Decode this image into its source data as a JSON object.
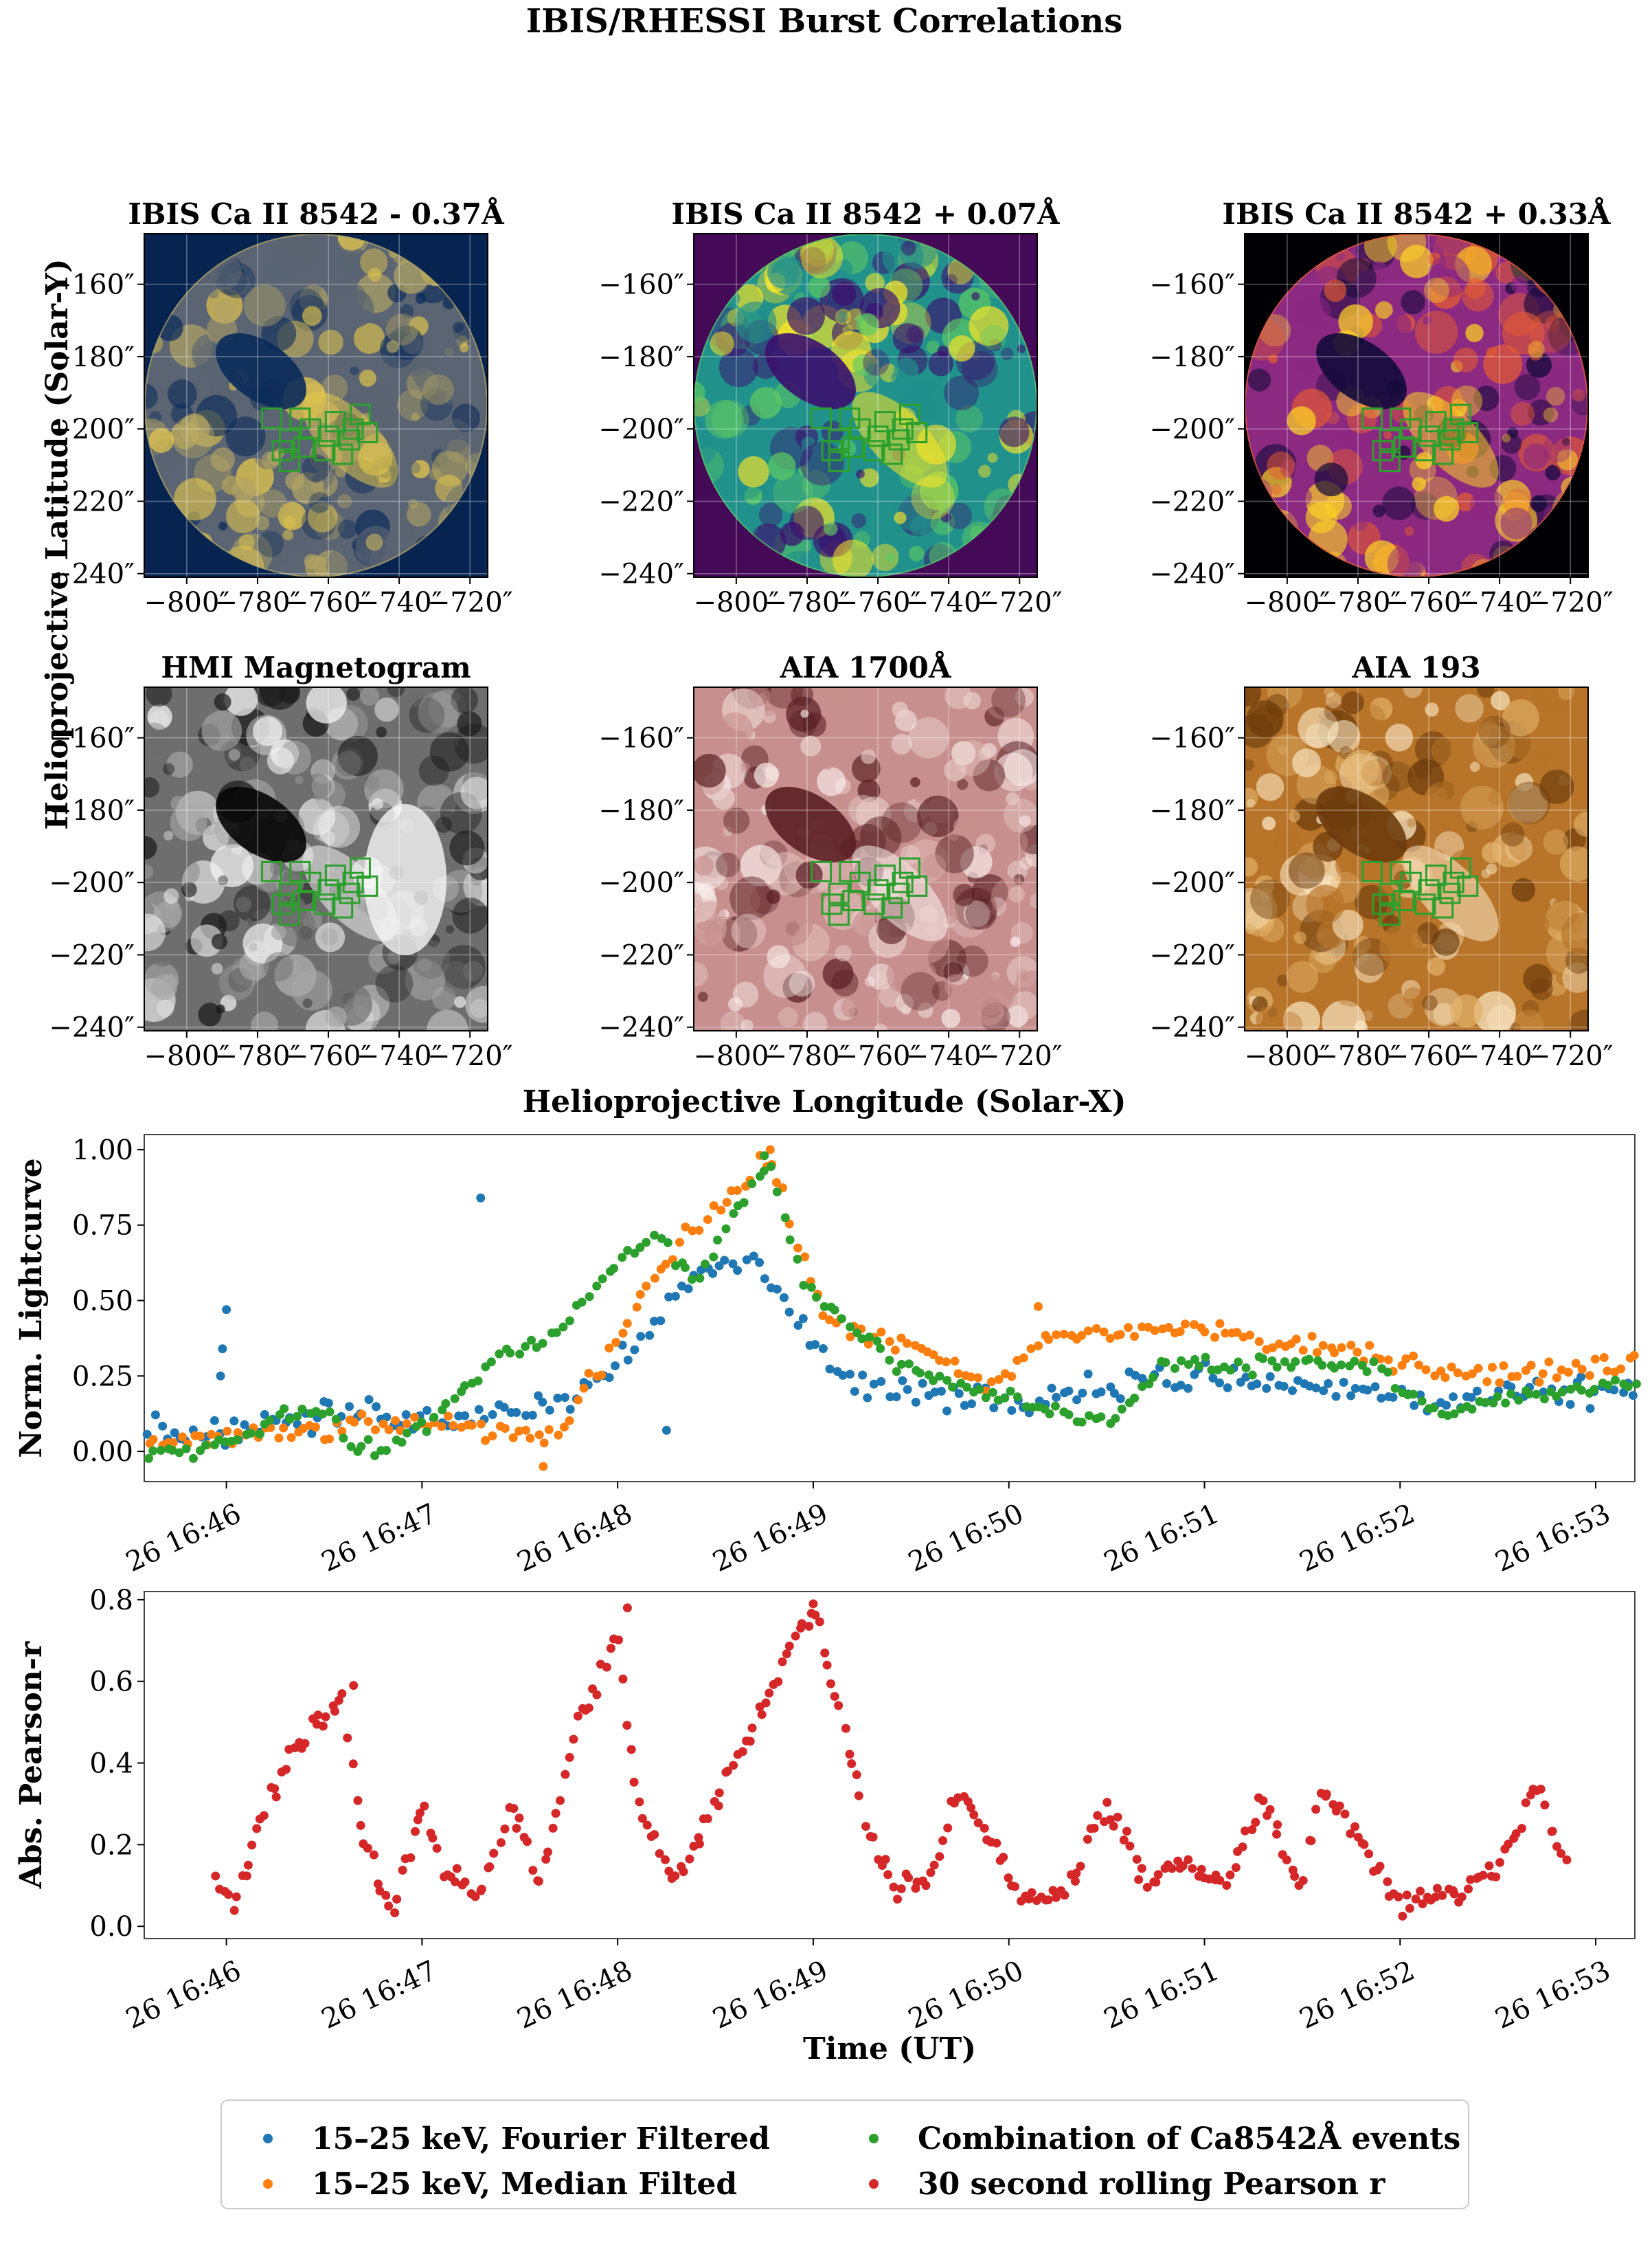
{
  "figure": {
    "title": "IBIS/RHESSI Burst Correlations",
    "shared_ylabel": "Helioprojective Latitude (Solar-Y)",
    "shared_xlabel": "Helioprojective Longitude (Solar-X)"
  },
  "image_panels": [
    {
      "title": "IBIS Ca II 8542 - 0.37Å",
      "disk": true,
      "colormap": "cividis-like",
      "bg": "#06244f"
    },
    {
      "title": "IBIS Ca II 8542 + 0.07Å",
      "disk": true,
      "colormap": "viridis",
      "bg": "#440a57"
    },
    {
      "title": "IBIS Ca II 8542 + 0.33Å",
      "disk": true,
      "colormap": "inferno",
      "bg": "#000004"
    },
    {
      "title": "HMI Magnetogram",
      "disk": false,
      "colormap": "gray",
      "bg": "#8c8c8c"
    },
    {
      "title": "AIA 1700Å",
      "disk": false,
      "colormap": "sdoaia1700",
      "bg": "#e6c9c4"
    },
    {
      "title": "AIA 193",
      "disk": false,
      "colormap": "sdoaia193",
      "bg": "#b8752a"
    }
  ],
  "image_axes": {
    "x_ticks": [
      "−800″",
      "−780″",
      "−760″",
      "−740″",
      "−720″"
    ],
    "y_ticks": [
      "−160″",
      "−180″",
      "−200″",
      "−220″",
      "−240″"
    ],
    "x_values": [
      -800,
      -780,
      -760,
      -740,
      -720
    ],
    "y_values": [
      -160,
      -180,
      -200,
      -220,
      -240
    ],
    "xlim": [
      -812,
      -715
    ],
    "ylim": [
      -241,
      -146
    ]
  },
  "markers": {
    "color": "#2ca02c",
    "boxes": [
      [
        -776,
        -197
      ],
      [
        -771,
        -203
      ],
      [
        -768,
        -197
      ],
      [
        -765,
        -200
      ],
      [
        -760,
        -202
      ],
      [
        -758,
        -198
      ],
      [
        -754,
        -203
      ],
      [
        -751,
        -196
      ],
      [
        -749,
        -201
      ],
      [
        -773,
        -206
      ],
      [
        -767,
        -205
      ],
      [
        -761,
        -206
      ],
      [
        -756,
        -207
      ],
      [
        -753,
        -200
      ],
      [
        -771,
        -209
      ]
    ]
  },
  "chart_data": [
    {
      "type": "scatter",
      "ylabel": "Norm. Lightcurve",
      "xlabel": "",
      "ylim": [
        -0.1,
        1.05
      ],
      "yticks": [
        0.0,
        0.25,
        0.5,
        0.75,
        1.0
      ],
      "ytick_labels": [
        "0.00",
        "0.25",
        "0.50",
        "0.75",
        "1.00"
      ],
      "xlim_min": [
        45.58,
        53.2
      ],
      "xticks_min": [
        46,
        47,
        48,
        49,
        50,
        51,
        52,
        53
      ],
      "xtick_labels": [
        "26 16:46",
        "26 16:47",
        "26 16:48",
        "26 16:49",
        "26 16:50",
        "26 16:51",
        "26 16:52",
        "26 16:53"
      ],
      "series": [
        {
          "name": "15–25 keV, Fourier Filtered",
          "color": "#1f77b4",
          "anchors": [
            [
              45.6,
              0.08
            ],
            [
              45.9,
              0.06
            ],
            [
              46.3,
              0.1
            ],
            [
              46.7,
              0.13
            ],
            [
              47.0,
              0.1
            ],
            [
              47.4,
              0.14
            ],
            [
              47.7,
              0.16
            ],
            [
              48.0,
              0.3
            ],
            [
              48.2,
              0.45
            ],
            [
              48.45,
              0.6
            ],
            [
              48.7,
              0.63
            ],
            [
              48.85,
              0.52
            ],
            [
              49.0,
              0.35
            ],
            [
              49.2,
              0.22
            ],
            [
              49.5,
              0.2
            ],
            [
              49.8,
              0.18
            ],
            [
              50.1,
              0.17
            ],
            [
              50.5,
              0.22
            ],
            [
              51.0,
              0.25
            ],
            [
              51.4,
              0.22
            ],
            [
              51.8,
              0.2
            ],
            [
              52.2,
              0.16
            ],
            [
              52.6,
              0.18
            ],
            [
              53.2,
              0.2
            ]
          ],
          "noise": 0.07,
          "n": 230,
          "outliers": [
            [
              46.0,
              0.47
            ],
            [
              45.98,
              0.34
            ],
            [
              45.97,
              0.25
            ],
            [
              47.3,
              0.84
            ],
            [
              48.25,
              0.07
            ]
          ]
        },
        {
          "name": "15–25 keV, Median Filted",
          "color": "#ff7f0e",
          "anchors": [
            [
              45.6,
              0.04
            ],
            [
              45.9,
              0.04
            ],
            [
              46.3,
              0.06
            ],
            [
              46.7,
              0.08
            ],
            [
              47.0,
              0.1
            ],
            [
              47.4,
              0.06
            ],
            [
              47.7,
              0.06
            ],
            [
              48.0,
              0.38
            ],
            [
              48.2,
              0.6
            ],
            [
              48.45,
              0.78
            ],
            [
              48.65,
              0.88
            ],
            [
              48.78,
              0.98
            ],
            [
              48.9,
              0.72
            ],
            [
              49.05,
              0.45
            ],
            [
              49.3,
              0.38
            ],
            [
              49.6,
              0.32
            ],
            [
              49.9,
              0.2
            ],
            [
              50.2,
              0.38
            ],
            [
              50.6,
              0.4
            ],
            [
              51.0,
              0.41
            ],
            [
              51.4,
              0.35
            ],
            [
              51.8,
              0.33
            ],
            [
              52.2,
              0.27
            ],
            [
              52.6,
              0.25
            ],
            [
              53.2,
              0.3
            ]
          ],
          "noise": 0.05,
          "n": 230,
          "outliers": [
            [
              47.62,
              -0.05
            ],
            [
              48.78,
              1.0
            ],
            [
              50.15,
              0.48
            ]
          ]
        },
        {
          "name": "Combination of Ca8542Å events",
          "color": "#2ca02c",
          "anchors": [
            [
              45.6,
              0.0
            ],
            [
              45.8,
              0.0
            ],
            [
              46.0,
              0.03
            ],
            [
              46.3,
              0.12
            ],
            [
              46.5,
              0.15
            ],
            [
              46.6,
              0.03
            ],
            [
              46.8,
              0.0
            ],
            [
              47.0,
              0.08
            ],
            [
              47.2,
              0.2
            ],
            [
              47.4,
              0.32
            ],
            [
              47.6,
              0.35
            ],
            [
              47.8,
              0.48
            ],
            [
              48.0,
              0.62
            ],
            [
              48.2,
              0.72
            ],
            [
              48.4,
              0.55
            ],
            [
              48.6,
              0.8
            ],
            [
              48.78,
              0.95
            ],
            [
              48.95,
              0.55
            ],
            [
              49.15,
              0.45
            ],
            [
              49.4,
              0.3
            ],
            [
              49.7,
              0.22
            ],
            [
              50.0,
              0.18
            ],
            [
              50.3,
              0.12
            ],
            [
              50.55,
              0.1
            ],
            [
              50.8,
              0.3
            ],
            [
              51.1,
              0.28
            ],
            [
              51.5,
              0.3
            ],
            [
              51.9,
              0.28
            ],
            [
              52.2,
              0.12
            ],
            [
              52.6,
              0.18
            ],
            [
              53.2,
              0.22
            ]
          ],
          "noise": 0.04,
          "n": 230,
          "outliers": [
            [
              48.75,
              0.98
            ]
          ]
        }
      ]
    },
    {
      "type": "scatter",
      "ylabel": "Abs. Pearson-r",
      "xlabel": "Time (UT)",
      "ylim": [
        -0.03,
        0.82
      ],
      "yticks": [
        0.0,
        0.2,
        0.4,
        0.6,
        0.8
      ],
      "ytick_labels": [
        "0.0",
        "0.2",
        "0.4",
        "0.6",
        "0.8"
      ],
      "xlim_min": [
        45.58,
        53.2
      ],
      "xticks_min": [
        46,
        47,
        48,
        49,
        50,
        51,
        52,
        53
      ],
      "xtick_labels": [
        "26 16:46",
        "26 16:47",
        "26 16:48",
        "26 16:49",
        "26 16:50",
        "26 16:51",
        "26 16:52",
        "26 16:53"
      ],
      "series": [
        {
          "name": "30 second rolling Pearson r",
          "color": "#d62728",
          "anchors": [
            [
              45.95,
              0.12
            ],
            [
              46.05,
              0.05
            ],
            [
              46.15,
              0.22
            ],
            [
              46.3,
              0.4
            ],
            [
              46.45,
              0.5
            ],
            [
              46.6,
              0.55
            ],
            [
              46.7,
              0.2
            ],
            [
              46.85,
              0.03
            ],
            [
              47.0,
              0.3
            ],
            [
              47.1,
              0.15
            ],
            [
              47.3,
              0.08
            ],
            [
              47.45,
              0.3
            ],
            [
              47.6,
              0.1
            ],
            [
              47.8,
              0.5
            ],
            [
              48.0,
              0.7
            ],
            [
              48.1,
              0.3
            ],
            [
              48.3,
              0.1
            ],
            [
              48.5,
              0.3
            ],
            [
              48.7,
              0.5
            ],
            [
              48.9,
              0.7
            ],
            [
              49.0,
              0.78
            ],
            [
              49.15,
              0.5
            ],
            [
              49.25,
              0.3
            ],
            [
              49.4,
              0.1
            ],
            [
              49.6,
              0.12
            ],
            [
              49.75,
              0.35
            ],
            [
              49.9,
              0.2
            ],
            [
              50.1,
              0.05
            ],
            [
              50.3,
              0.1
            ],
            [
              50.5,
              0.3
            ],
            [
              50.7,
              0.1
            ],
            [
              50.9,
              0.15
            ],
            [
              51.1,
              0.1
            ],
            [
              51.3,
              0.3
            ],
            [
              51.5,
              0.1
            ],
            [
              51.6,
              0.35
            ],
            [
              51.8,
              0.2
            ],
            [
              52.0,
              0.05
            ],
            [
              52.3,
              0.08
            ],
            [
              52.5,
              0.15
            ],
            [
              52.7,
              0.35
            ],
            [
              52.85,
              0.15
            ]
          ],
          "noise": 0.045,
          "n": 330,
          "outliers": [
            [
              48.05,
              0.78
            ],
            [
              49.0,
              0.79
            ],
            [
              46.65,
              0.59
            ]
          ]
        }
      ]
    }
  ],
  "legend": {
    "position": "bottom-center",
    "entries": [
      {
        "label": "15–25 keV, Fourier Filtered",
        "color": "#1f77b4"
      },
      {
        "label": "Combination of Ca8542Å events",
        "color": "#2ca02c"
      },
      {
        "label": "15–25 keV, Median Filted",
        "color": "#ff7f0e"
      },
      {
        "label": "30 second rolling Pearson r",
        "color": "#d62728"
      }
    ]
  }
}
